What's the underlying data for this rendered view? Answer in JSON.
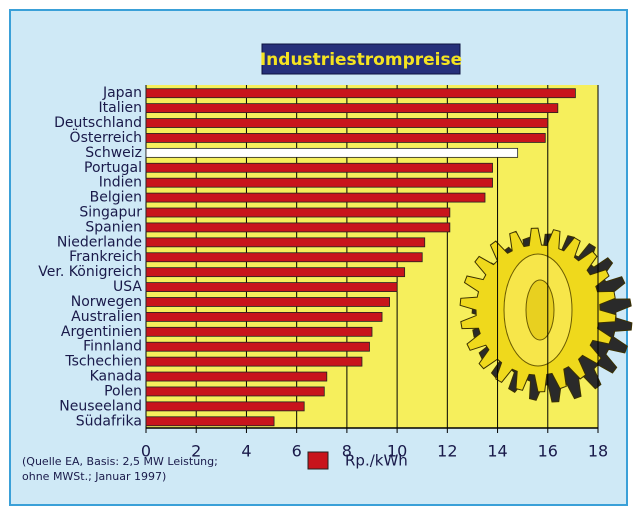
{
  "chart_data": {
    "type": "bar",
    "orientation": "horizontal",
    "title": "Industriestrompreise",
    "categories": [
      "Japan",
      "Italien",
      "Deutschland",
      "Österreich",
      "Schweiz",
      "Portugal",
      "Indien",
      "Belgien",
      "Singapur",
      "Spanien",
      "Niederlande",
      "Frankreich",
      "Ver. Königreich",
      "USA",
      "Norwegen",
      "Australien",
      "Argentinien",
      "Finnland",
      "Tschechien",
      "Kanada",
      "Polen",
      "Neuseeland",
      "Südafrika"
    ],
    "series": [
      {
        "name": "Rp./kWh",
        "color": "#c8141c",
        "values": [
          17.1,
          16.4,
          16.0,
          15.9,
          14.8,
          13.8,
          13.8,
          13.5,
          12.1,
          12.1,
          11.1,
          11.0,
          10.3,
          10.0,
          9.7,
          9.4,
          9.0,
          8.9,
          8.6,
          7.2,
          7.1,
          6.3,
          5.1
        ],
        "bar_colors": [
          "#c8141c",
          "#c8141c",
          "#c8141c",
          "#c8141c",
          "#ffffff",
          "#c8141c",
          "#c8141c",
          "#c8141c",
          "#c8141c",
          "#c8141c",
          "#c8141c",
          "#c8141c",
          "#c8141c",
          "#c8141c",
          "#c8141c",
          "#c8141c",
          "#c8141c",
          "#c8141c",
          "#c8141c",
          "#c8141c",
          "#c8141c",
          "#c8141c",
          "#c8141c"
        ]
      }
    ],
    "xlim": [
      0,
      18
    ],
    "xticks": [
      0,
      2,
      4,
      6,
      8,
      10,
      12,
      14,
      16,
      18
    ],
    "grid": true,
    "note_lines": [
      "(Quelle EA, Basis: 2,5 MW Leistung;",
      "ohne MWSt.; Januar 1997)"
    ]
  }
}
